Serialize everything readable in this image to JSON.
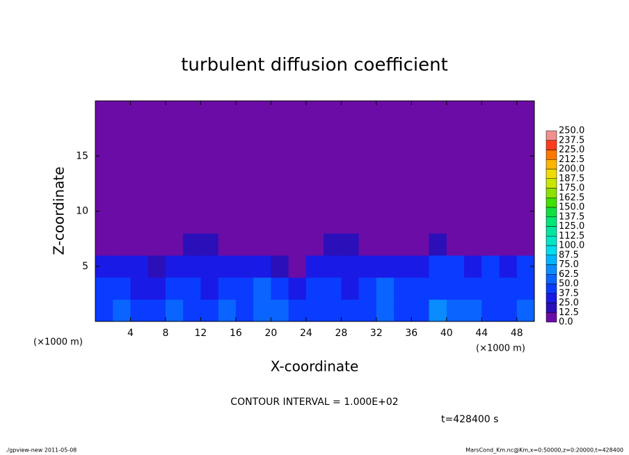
{
  "chart_data": {
    "type": "heatmap",
    "title": "turbulent diffusion coefficient",
    "x_label": "X-coordinate",
    "y_label": "Z-coordinate",
    "x_unit": "(×1000 m)",
    "y_unit": "(×1000 m)",
    "contour_note": "CONTOUR INTERVAL = 1.000E+02",
    "time_note": "t=428400 s",
    "footer_left": "./gpview-new  2011-05-08",
    "footer_right": "MarsCond_Km.nc@Km,x=0:50000,z=0:20000,t=428400",
    "xlim": [
      0,
      50
    ],
    "ylim": [
      0,
      20
    ],
    "xticks": [
      4,
      8,
      12,
      16,
      20,
      24,
      28,
      32,
      36,
      40,
      44,
      48
    ],
    "yticks": [
      5,
      10,
      15
    ],
    "x": [
      1,
      3,
      5,
      7,
      9,
      11,
      13,
      15,
      17,
      19,
      21,
      23,
      25,
      27,
      29,
      31,
      33,
      35,
      37,
      39,
      41,
      43,
      45,
      47,
      49
    ],
    "y": [
      1,
      3,
      5,
      7,
      9,
      11,
      13,
      15,
      17,
      19
    ],
    "z": [
      [
        45,
        50,
        38,
        42,
        55,
        48,
        40,
        50,
        45,
        60,
        52,
        40,
        45,
        48,
        38,
        42,
        60,
        45,
        40,
        70,
        55,
        50,
        45,
        48,
        52
      ],
      [
        40,
        45,
        35,
        30,
        45,
        40,
        35,
        45,
        40,
        55,
        45,
        35,
        40,
        45,
        35,
        38,
        50,
        42,
        40,
        45,
        48,
        42,
        45,
        40,
        42
      ],
      [
        35,
        30,
        25,
        20,
        30,
        35,
        30,
        35,
        30,
        25,
        15,
        10,
        30,
        35,
        30,
        35,
        30,
        25,
        35,
        40,
        38,
        35,
        40,
        35,
        38
      ],
      [
        10,
        5,
        5,
        5,
        5,
        15,
        20,
        10,
        5,
        5,
        5,
        5,
        8,
        15,
        20,
        12,
        5,
        5,
        10,
        15,
        10,
        5,
        5,
        5,
        10
      ],
      [
        10,
        5,
        5,
        5,
        5,
        5,
        5,
        5,
        5,
        5,
        5,
        5,
        5,
        5,
        8,
        5,
        5,
        5,
        5,
        5,
        5,
        5,
        5,
        5,
        5
      ],
      [
        5,
        5,
        5,
        5,
        5,
        5,
        5,
        5,
        5,
        5,
        5,
        5,
        5,
        5,
        5,
        5,
        5,
        5,
        5,
        5,
        5,
        5,
        5,
        5,
        5
      ],
      [
        5,
        5,
        5,
        5,
        5,
        5,
        5,
        5,
        5,
        5,
        5,
        5,
        5,
        5,
        5,
        5,
        5,
        5,
        5,
        5,
        5,
        5,
        5,
        5,
        5
      ],
      [
        5,
        5,
        5,
        5,
        5,
        5,
        5,
        5,
        5,
        5,
        5,
        5,
        5,
        5,
        5,
        5,
        5,
        5,
        5,
        5,
        5,
        5,
        5,
        5,
        5
      ],
      [
        5,
        5,
        5,
        5,
        5,
        5,
        5,
        5,
        5,
        5,
        5,
        5,
        5,
        5,
        5,
        5,
        5,
        5,
        5,
        5,
        5,
        5,
        5,
        5,
        5
      ],
      [
        5,
        5,
        5,
        5,
        5,
        5,
        5,
        5,
        5,
        5,
        5,
        5,
        5,
        5,
        5,
        5,
        5,
        5,
        5,
        5,
        5,
        5,
        5,
        5,
        5
      ]
    ],
    "levels": [
      {
        "value": 0,
        "label": "0.0"
      },
      {
        "value": 12.5,
        "label": "12.5"
      },
      {
        "value": 25,
        "label": "25.0"
      },
      {
        "value": 37.5,
        "label": "37.5"
      },
      {
        "value": 50,
        "label": "50.0"
      },
      {
        "value": 62.5,
        "label": "62.5"
      },
      {
        "value": 75,
        "label": "75.0"
      },
      {
        "value": 87.5,
        "label": "87.5"
      },
      {
        "value": 100,
        "label": "100.0"
      },
      {
        "value": 112.5,
        "label": "112.5"
      },
      {
        "value": 125,
        "label": "125.0"
      },
      {
        "value": 137.5,
        "label": "137.5"
      },
      {
        "value": 150,
        "label": "150.0"
      },
      {
        "value": 162.5,
        "label": "162.5"
      },
      {
        "value": 175,
        "label": "175.0"
      },
      {
        "value": 187.5,
        "label": "187.5"
      },
      {
        "value": 200,
        "label": "200.0"
      },
      {
        "value": 212.5,
        "label": "212.5"
      },
      {
        "value": 225,
        "label": "225.0"
      },
      {
        "value": 237.5,
        "label": "237.5"
      },
      {
        "value": 250,
        "label": "250.0"
      }
    ],
    "colors": [
      "#6b0ca6",
      "#2b0fb9",
      "#1a1ae6",
      "#0a3cff",
      "#0a64ff",
      "#0a8cff",
      "#00b4ff",
      "#00dcf0",
      "#00e6c8",
      "#00e6a0",
      "#00e678",
      "#10e040",
      "#40e000",
      "#8ce000",
      "#c8e600",
      "#f0dc00",
      "#ffb400",
      "#ff7800",
      "#ff3c1e",
      "#f09090"
    ]
  }
}
